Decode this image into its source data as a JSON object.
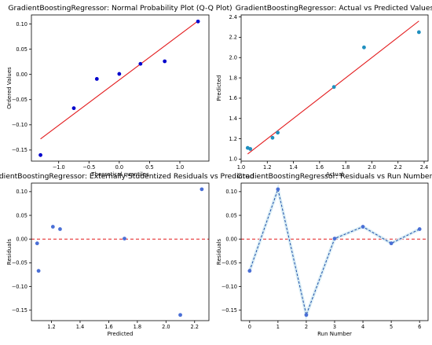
{
  "chart_data": [
    {
      "type": "scatter",
      "title": "GradientBoostingRegressor: Normal Probability Plot (Q-Q Plot)",
      "xlabel": "Theoretical quantiles",
      "ylabel": "Ordered Values",
      "xlim": [
        -1.45,
        1.48
      ],
      "ylim": [
        -0.172,
        0.118
      ],
      "xticks": [
        -1.0,
        -0.5,
        0.0,
        0.5,
        1.0
      ],
      "xtick_labels": [
        "−1.0",
        "−0.5",
        "0.0",
        "0.5",
        "1.0"
      ],
      "yticks": [
        -0.15,
        -0.1,
        -0.05,
        0.0,
        0.05,
        0.1
      ],
      "ytick_labels": [
        "−0.15",
        "−0.10",
        "−0.05",
        "0.00",
        "0.05",
        "0.10"
      ],
      "points": {
        "x": [
          -1.3,
          -0.75,
          -0.37,
          0.0,
          0.35,
          0.75,
          1.3
        ],
        "y": [
          -0.16,
          -0.067,
          -0.009,
          0.001,
          0.021,
          0.026,
          0.105
        ]
      },
      "line": {
        "x": [
          -1.3,
          1.3
        ],
        "y": [
          -0.128,
          0.106
        ]
      },
      "point_color": "#0000cc",
      "line_color": "#e31a1c",
      "grid": false
    },
    {
      "type": "scatter",
      "title": "GradientBoostingRegressor: Actual vs Predicted Values",
      "xlabel": "Actual",
      "ylabel": "Predicted",
      "xlim": [
        1.0,
        2.43
      ],
      "ylim": [
        0.98,
        2.42
      ],
      "xticks": [
        1.0,
        1.2,
        1.4,
        1.6,
        1.8,
        2.0,
        2.2,
        2.4
      ],
      "xtick_labels": [
        "1.0",
        "1.2",
        "1.4",
        "1.6",
        "1.8",
        "2.0",
        "2.2",
        "2.4"
      ],
      "yticks": [
        1.0,
        1.2,
        1.4,
        1.6,
        1.8,
        2.0,
        2.2,
        2.4
      ],
      "ytick_labels": [
        "1.0",
        "1.2",
        "1.4",
        "1.6",
        "1.8",
        "2.0",
        "2.2",
        "2.4"
      ],
      "points": {
        "x": [
          1.05,
          1.07,
          1.24,
          1.28,
          1.71,
          1.94,
          2.36
        ],
        "y": [
          1.11,
          1.1,
          1.21,
          1.26,
          1.71,
          2.1,
          2.25
        ]
      },
      "line": {
        "x": [
          1.05,
          2.36
        ],
        "y": [
          1.05,
          2.36
        ]
      },
      "point_color": "#1f8fbf",
      "line_color": "#e31a1c",
      "grid": false
    },
    {
      "type": "scatter",
      "title": "GradientBoostingRegressor: Externally Studentized Residuals vs Predicted",
      "xlabel": "Predicted",
      "ylabel": "Residuals",
      "xlim": [
        1.06,
        2.3
      ],
      "ylim": [
        -0.172,
        0.118
      ],
      "xticks": [
        1.2,
        1.4,
        1.6,
        1.8,
        2.0,
        2.2
      ],
      "xtick_labels": [
        "1.2",
        "1.4",
        "1.6",
        "1.8",
        "2.0",
        "2.2"
      ],
      "yticks": [
        -0.15,
        -0.1,
        -0.05,
        0.0,
        0.05,
        0.1
      ],
      "ytick_labels": [
        "−0.15",
        "−0.10",
        "−0.05",
        "0.00",
        "0.05",
        "0.10"
      ],
      "points": {
        "x": [
          1.1,
          1.11,
          1.21,
          1.26,
          1.71,
          2.1,
          2.25
        ],
        "y": [
          -0.009,
          -0.067,
          0.026,
          0.021,
          0.001,
          -0.16,
          0.105
        ]
      },
      "reference_y": 0.0,
      "point_color": "#4a6fd6",
      "line_color": "#e31a1c",
      "grid": false
    },
    {
      "type": "line",
      "title": "GradientBoostingRegressor: Residuals vs Run Number",
      "xlabel": "Run Number",
      "ylabel": "Residuals",
      "xlim": [
        -0.3,
        6.3
      ],
      "ylim": [
        -0.172,
        0.118
      ],
      "xticks": [
        0,
        1,
        2,
        3,
        4,
        5,
        6
      ],
      "xtick_labels": [
        "0",
        "1",
        "2",
        "3",
        "4",
        "5",
        "6"
      ],
      "yticks": [
        -0.15,
        -0.1,
        -0.05,
        0.0,
        0.05,
        0.1
      ],
      "ytick_labels": [
        "−0.15",
        "−0.10",
        "−0.05",
        "0.00",
        "0.05",
        "0.10"
      ],
      "points": {
        "x": [
          0,
          1,
          2,
          3,
          4,
          5,
          6
        ],
        "y": [
          -0.067,
          0.105,
          -0.16,
          0.001,
          0.026,
          -0.009,
          0.021
        ]
      },
      "reference_y": 0.0,
      "point_color": "#4a6fd6",
      "line_color": "#1f4fa8",
      "ref_color": "#e31a1c",
      "grid": false
    }
  ]
}
